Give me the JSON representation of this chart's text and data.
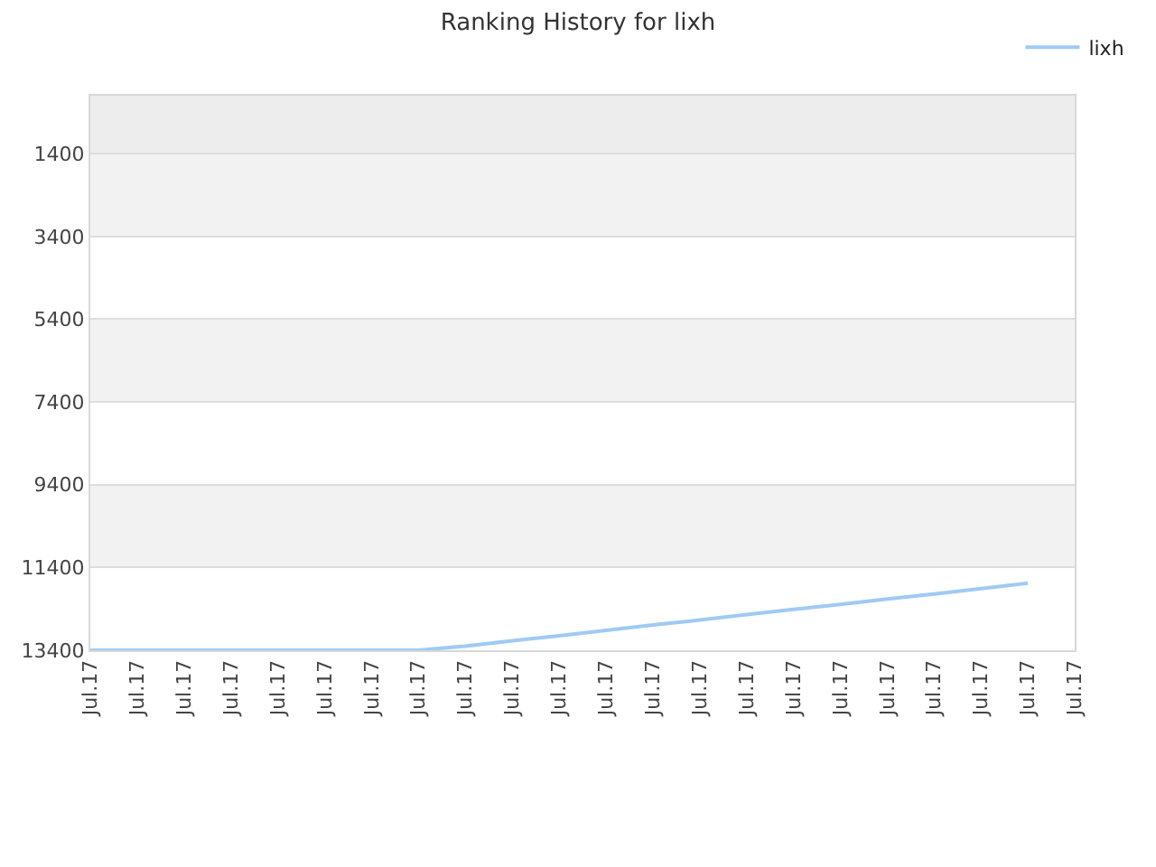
{
  "chart_data": {
    "type": "line",
    "title": "Ranking History for lixh",
    "categories": [
      "Jul.17",
      "Jul.17",
      "Jul.17",
      "Jul.17",
      "Jul.17",
      "Jul.17",
      "Jul.17",
      "Jul.17",
      "Jul.17",
      "Jul.17",
      "Jul.17",
      "Jul.17",
      "Jul.17",
      "Jul.17",
      "Jul.17",
      "Jul.17",
      "Jul.17",
      "Jul.17",
      "Jul.17",
      "Jul.17",
      "Jul.17",
      "Jul.17"
    ],
    "series": [
      {
        "name": "lixh",
        "color": "#9fcaf4",
        "values": [
          13400,
          13400,
          13400,
          13400,
          13400,
          13400,
          13400,
          13400,
          13300,
          13170,
          13050,
          12920,
          12790,
          12670,
          12540,
          12410,
          12290,
          12160,
          12040,
          11910,
          11780,
          null
        ]
      }
    ],
    "ylim": [
      13400,
      0
    ],
    "yticks": [
      1400,
      3400,
      5400,
      7400,
      9400,
      11400,
      13400
    ],
    "bands": [
      {
        "axis": "y",
        "from": 0,
        "to": 1400,
        "color": "#ededed"
      },
      {
        "axis": "y",
        "from": 1400,
        "to": 3400,
        "color": "#f2f2f2"
      },
      {
        "axis": "y",
        "from": 5400,
        "to": 7400,
        "color": "#f2f2f2"
      },
      {
        "axis": "y",
        "from": 9400,
        "to": 11400,
        "color": "#f2f2f2"
      }
    ],
    "grid": "y",
    "legend": "top right",
    "line_style": "solid"
  }
}
